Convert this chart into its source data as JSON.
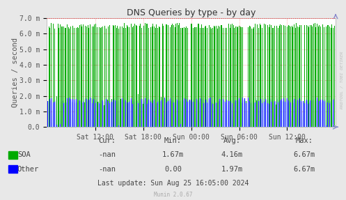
{
  "title": "DNS Queries by type - by day",
  "ylabel": "Queries / second",
  "bg_color": "#e8e8e8",
  "plot_bg_color": "#ffffff",
  "grid_color_h": "#ff9999",
  "grid_color_v": "#dddddd",
  "ylim": [
    0,
    7000000
  ],
  "ytick_vals": [
    0,
    1000000,
    2000000,
    3000000,
    4000000,
    5000000,
    6000000,
    7000000
  ],
  "ytick_labels": [
    "0.0",
    "1.0 m",
    "2.0 m",
    "3.0 m",
    "4.0 m",
    "5.0 m",
    "6.0 m",
    "7.0 m"
  ],
  "xtick_labels": [
    "Sat 12:00",
    "Sat 18:00",
    "Sun 00:00",
    "Sun 06:00",
    "Sun 12:00"
  ],
  "soa_color": "#00aa00",
  "other_color": "#0000ff",
  "other_fill_color": "#aaccff",
  "soa_min": "1.67m",
  "soa_avg": "4.16m",
  "soa_max": "6.67m",
  "soa_cur": "-nan",
  "other_min": "0.00",
  "other_avg": "1.97m",
  "other_max": "6.67m",
  "other_cur": "-nan",
  "last_update": "Last update: Sun Aug 25 16:05:00 2024",
  "munin_version": "Munin 2.0.67",
  "watermark": "RRDTOOL / TOBI OETIKER",
  "n_periods": 576,
  "title_fontsize": 9,
  "tick_fontsize": 7,
  "legend_fontsize": 7.5
}
